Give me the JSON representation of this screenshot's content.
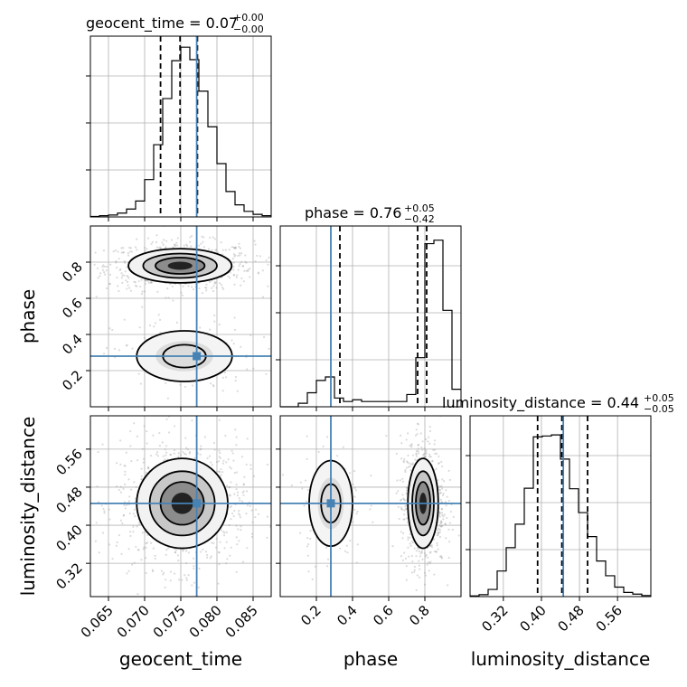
{
  "chart_data": {
    "type": "corner",
    "parameters": [
      "geocent_time",
      "phase",
      "luminosity_distance"
    ],
    "truth_color": "#4682b4",
    "titles": [
      {
        "main": "geocent_time = 0.07",
        "sup": "+0.00",
        "sub": "−0.00"
      },
      {
        "main": "phase = 0.76",
        "sup": "+0.05",
        "sub": "−0.42"
      },
      {
        "main": "luminosity_distance = 0.44",
        "sup": "+0.05",
        "sub": "−0.05"
      }
    ],
    "axis_labels": {
      "x": [
        "geocent_time",
        "phase",
        "luminosity_distance"
      ],
      "y": [
        "phase",
        "luminosity_distance"
      ]
    },
    "ticks": {
      "geocent_time": [
        "0.065",
        "0.070",
        "0.075",
        "0.080",
        "0.085"
      ],
      "phase": [
        "0.2",
        "0.4",
        "0.6",
        "0.8"
      ],
      "luminosity_distance": [
        "0.32",
        "0.40",
        "0.48",
        "0.56"
      ]
    },
    "ranges": {
      "geocent_time": [
        0.0625,
        0.0875
      ],
      "phase": [
        0.0,
        1.0
      ],
      "luminosity_distance": [
        0.25,
        0.63
      ]
    },
    "grid": true,
    "truths": {
      "geocent_time": 0.0772,
      "phase": 0.28,
      "luminosity_distance": 0.446
    },
    "quantiles": {
      "geocent_time": [
        0.0722,
        0.0749,
        0.0773
      ],
      "phase": [
        0.33,
        0.76,
        0.81
      ],
      "luminosity_distance": [
        0.392,
        0.443,
        0.497
      ]
    },
    "histograms": {
      "geocent_time": {
        "edges": [
          0.0625,
          0.0875
        ],
        "counts": [
          0.003,
          0.007,
          0.011,
          0.022,
          0.045,
          0.091,
          0.213,
          0.412,
          0.675,
          0.891,
          0.968,
          0.897,
          0.717,
          0.514,
          0.304,
          0.145,
          0.069,
          0.032,
          0.015,
          0.007
        ]
      },
      "phase": {
        "edges": [
          0.0,
          1.0
        ],
        "counts": [
          0.0,
          0.0,
          0.02,
          0.08,
          0.15,
          0.17,
          0.05,
          0.03,
          0.04,
          0.03,
          0.03,
          0.03,
          0.03,
          0.03,
          0.07,
          0.28,
          0.93,
          0.95,
          0.55,
          0.1
        ]
      },
      "luminosity_distance": {
        "edges": [
          0.25,
          0.63
        ],
        "counts": [
          0.004,
          0.011,
          0.041,
          0.146,
          0.279,
          0.413,
          0.618,
          0.911,
          0.916,
          0.922,
          0.784,
          0.615,
          0.479,
          0.342,
          0.203,
          0.119,
          0.054,
          0.024,
          0.014,
          0.006
        ]
      }
    },
    "density_blobs": {
      "geocent_time|phase": [
        {
          "cx": 0.0749,
          "cy": 0.78,
          "sx": 0.0034,
          "sy": 0.045,
          "w": 0.85
        },
        {
          "cx": 0.0755,
          "cy": 0.28,
          "sx": 0.0033,
          "sy": 0.07,
          "w": 0.15
        }
      ],
      "geocent_time|luminosity_distance": [
        {
          "cx": 0.0752,
          "cy": 0.446,
          "sx": 0.003,
          "sy": 0.045,
          "w": 1.0
        }
      ],
      "phase|luminosity_distance": [
        {
          "cx": 0.79,
          "cy": 0.446,
          "sx": 0.04,
          "sy": 0.045,
          "w": 0.85
        },
        {
          "cx": 0.28,
          "cy": 0.446,
          "sx": 0.06,
          "sy": 0.045,
          "w": 0.15
        }
      ]
    }
  }
}
